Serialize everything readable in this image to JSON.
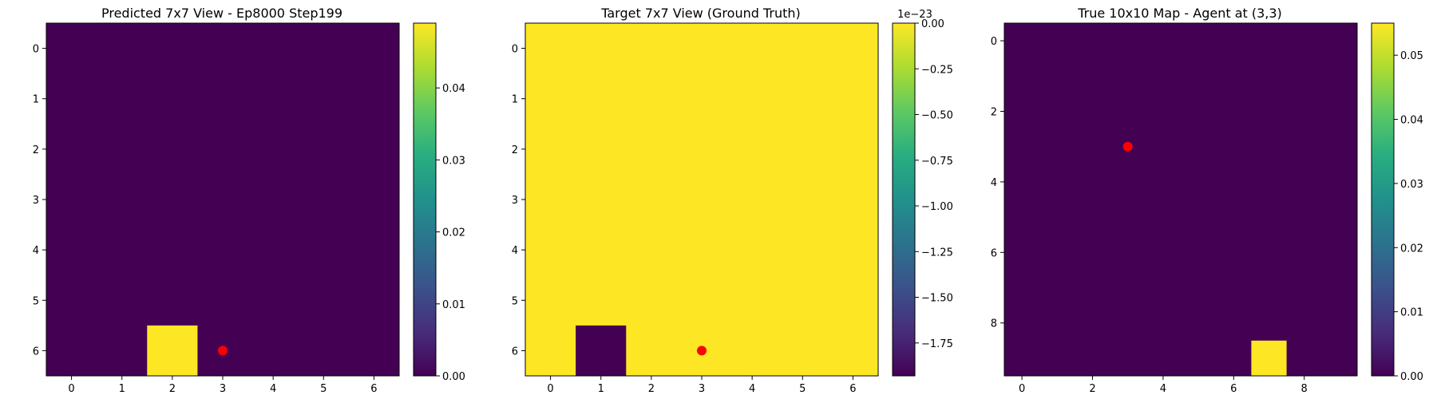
{
  "chart_data": [
    {
      "type": "heatmap",
      "title": "Predicted 7x7 View - Ep8000 Step199",
      "rows": 7,
      "cols": 7,
      "xticks": [
        0,
        1,
        2,
        3,
        4,
        5,
        6
      ],
      "yticks": [
        0,
        1,
        2,
        3,
        4,
        5,
        6
      ],
      "default_value": 0.0,
      "cells": [
        {
          "row": 6,
          "col": 2,
          "value": 0.049
        }
      ],
      "agent": {
        "x": 3,
        "y": 6
      },
      "colorbar": {
        "vmin": 0.0,
        "vmax": 0.049,
        "ticks": [
          0.0,
          0.01,
          0.02,
          0.03,
          0.04
        ],
        "tick_labels": [
          "0.00",
          "0.01",
          "0.02",
          "0.03",
          "0.04"
        ],
        "offset_label": ""
      }
    },
    {
      "type": "heatmap",
      "title": "Target 7x7 View (Ground Truth)",
      "rows": 7,
      "cols": 7,
      "xticks": [
        0,
        1,
        2,
        3,
        4,
        5,
        6
      ],
      "yticks": [
        0,
        1,
        2,
        3,
        4,
        5,
        6
      ],
      "default_value": 0.0,
      "cells": [
        {
          "row": 6,
          "col": 1,
          "value": -1.93
        }
      ],
      "agent": {
        "x": 3,
        "y": 6
      },
      "colorbar": {
        "vmin": -1.93,
        "vmax": 0.0,
        "ticks": [
          -1.75,
          -1.5,
          -1.25,
          -1.0,
          -0.75,
          -0.5,
          -0.25,
          0.0
        ],
        "tick_labels": [
          "−1.75",
          "−1.50",
          "−1.25",
          "−1.00",
          "−0.75",
          "−0.50",
          "−0.25",
          "0.00"
        ],
        "offset_label": "1e−23"
      }
    },
    {
      "type": "heatmap",
      "title": "True 10x10 Map - Agent at (3,3)",
      "rows": 10,
      "cols": 10,
      "xticks": [
        0,
        2,
        4,
        6,
        8
      ],
      "yticks": [
        0,
        2,
        4,
        6,
        8
      ],
      "default_value": 0.0,
      "cells": [
        {
          "row": 9,
          "col": 7,
          "value": 0.055
        }
      ],
      "agent": {
        "x": 3,
        "y": 3
      },
      "colorbar": {
        "vmin": 0.0,
        "vmax": 0.055,
        "ticks": [
          0.0,
          0.01,
          0.02,
          0.03,
          0.04,
          0.05
        ],
        "tick_labels": [
          "0.00",
          "0.01",
          "0.02",
          "0.03",
          "0.04",
          "0.05"
        ],
        "offset_label": ""
      }
    }
  ]
}
